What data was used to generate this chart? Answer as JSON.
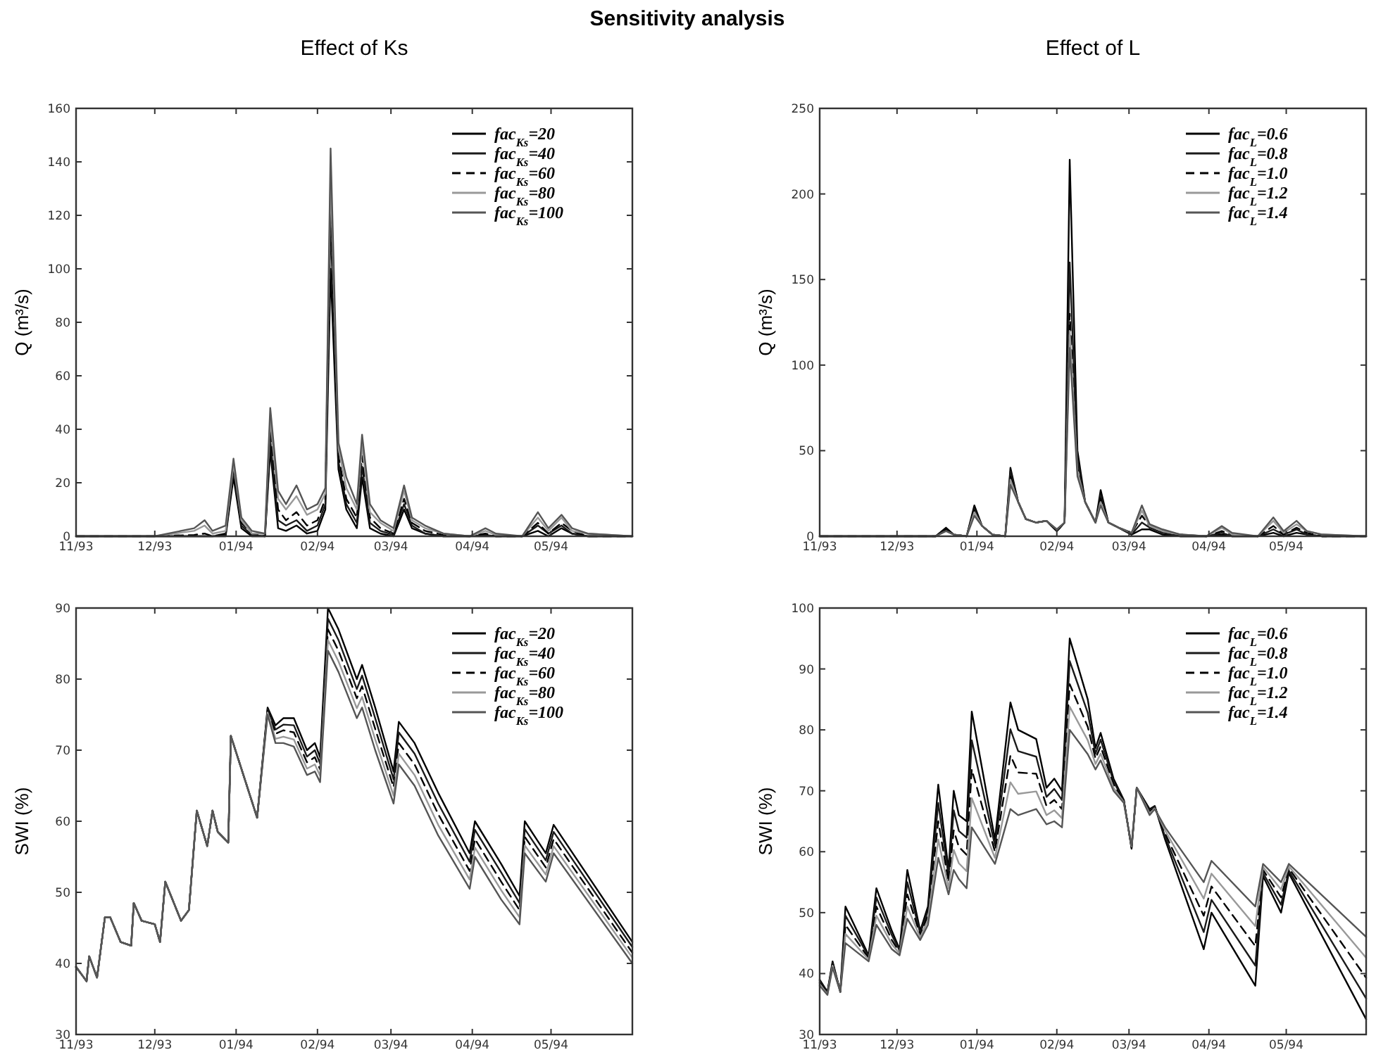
{
  "chart_data": [
    {
      "type": "line",
      "title": "Sensitivity analysis",
      "subtitle": "Effect of Ks",
      "ylabel": "Q (m³/s)",
      "legend": "top right",
      "x": [
        "1993-11-01",
        "1993-12-01",
        "1993-12-16",
        "1993-12-20",
        "1993-12-23",
        "1993-12-28",
        "1993-12-31",
        "1994-01-03",
        "1994-01-07",
        "1994-01-12",
        "1994-01-14",
        "1994-01-17",
        "1994-01-20",
        "1994-01-24",
        "1994-01-28",
        "1994-02-01",
        "1994-02-04",
        "1994-02-06",
        "1994-02-09",
        "1994-02-12",
        "1994-02-16",
        "1994-02-18",
        "1994-02-21",
        "1994-02-25",
        "1994-03-02",
        "1994-03-06",
        "1994-03-09",
        "1994-03-14",
        "1994-03-21",
        "1994-03-31",
        "1994-04-06",
        "1994-04-10",
        "1994-04-20",
        "1994-04-26",
        "1994-04-30",
        "1994-05-05",
        "1994-05-09",
        "1994-05-15",
        "1994-06-01"
      ],
      "xlim": [
        "1993-11-01",
        "1994-06-01"
      ],
      "xticks": [
        {
          "value": "1993-11-01",
          "label": "11/93"
        },
        {
          "value": "1993-12-01",
          "label": "12/93"
        },
        {
          "value": "1994-01-01",
          "label": "01/94"
        },
        {
          "value": "1994-02-01",
          "label": "02/94"
        },
        {
          "value": "1994-03-01",
          "label": "03/94"
        },
        {
          "value": "1994-04-01",
          "label": "04/94"
        },
        {
          "value": "1994-05-01",
          "label": "05/94"
        }
      ],
      "ylim": [
        0,
        160
      ],
      "yticks": [
        0,
        20,
        40,
        60,
        80,
        100,
        120,
        140,
        160
      ],
      "series": [
        {
          "name": "fac$_{Ks}$=20",
          "color": "#000000",
          "line_style": "solid",
          "values": [
            0,
            0,
            0,
            0,
            0,
            0,
            22,
            3,
            0,
            0,
            32,
            3,
            2,
            4,
            1,
            2,
            10,
            100,
            25,
            10,
            3,
            22,
            3,
            1,
            0,
            10,
            3,
            1,
            0,
            0,
            0,
            0,
            0,
            2,
            0,
            3,
            1,
            0,
            0
          ]
        },
        {
          "name": "fac$_{Ks}$=40",
          "color": "#1a1a1a",
          "line_style": "solid",
          "values": [
            0,
            0,
            0,
            0,
            0,
            0.5,
            24,
            4,
            0.5,
            0,
            36,
            6,
            4,
            6,
            2,
            4,
            12,
            118,
            28,
            12,
            5,
            26,
            5,
            2,
            0.5,
            12,
            4,
            1,
            0,
            0,
            0.5,
            0,
            0,
            4,
            1,
            4,
            1,
            0,
            0
          ]
        },
        {
          "name": "fac$_{Ks}$=60",
          "color": "#000000",
          "line_style": "dashed",
          "values": [
            0,
            0,
            0.5,
            1,
            0,
            1,
            25,
            5,
            1,
            0,
            40,
            10,
            6,
            9,
            4,
            6,
            14,
            125,
            30,
            14,
            7,
            30,
            7,
            3,
            1,
            14,
            5,
            2,
            0.5,
            0,
            1,
            0,
            0,
            5,
            1,
            5,
            2,
            0,
            0
          ]
        },
        {
          "name": "fac$_{Ks}$=80",
          "color": "#999999",
          "line_style": "solid",
          "values": [
            0,
            0,
            2,
            4,
            1,
            2,
            27,
            6,
            1,
            1,
            44,
            14,
            10,
            15,
            8,
            10,
            16,
            135,
            33,
            18,
            10,
            34,
            9,
            5,
            2,
            17,
            6,
            3,
            1,
            0,
            2,
            0.5,
            0,
            7,
            2,
            7,
            2,
            1,
            0
          ]
        },
        {
          "name": "fac$_{Ks}$=100",
          "color": "#555555",
          "line_style": "solid",
          "values": [
            0,
            0,
            3,
            6,
            2,
            4,
            29,
            7,
            2,
            1,
            48,
            17,
            12,
            19,
            10,
            12,
            18,
            145,
            35,
            22,
            12,
            38,
            12,
            6,
            3,
            19,
            7,
            4,
            1,
            0,
            3,
            1,
            0,
            9,
            3,
            8,
            3,
            1,
            0
          ]
        }
      ]
    },
    {
      "type": "line",
      "subtitle": "Effect of L",
      "ylabel": "Q (m³/s)",
      "legend": "top right",
      "x": [
        "1993-11-01",
        "1993-12-01",
        "1993-12-16",
        "1993-12-20",
        "1993-12-23",
        "1993-12-28",
        "1993-12-31",
        "1994-01-03",
        "1994-01-07",
        "1994-01-12",
        "1994-01-14",
        "1994-01-17",
        "1994-01-20",
        "1994-01-24",
        "1994-01-28",
        "1994-02-01",
        "1994-02-04",
        "1994-02-06",
        "1994-02-09",
        "1994-02-12",
        "1994-02-16",
        "1994-02-18",
        "1994-02-21",
        "1994-02-25",
        "1994-03-02",
        "1994-03-06",
        "1994-03-09",
        "1994-03-14",
        "1994-03-21",
        "1994-03-31",
        "1994-04-06",
        "1994-04-10",
        "1994-04-20",
        "1994-04-26",
        "1994-04-30",
        "1994-05-05",
        "1994-05-09",
        "1994-05-15",
        "1994-06-01"
      ],
      "xlim": [
        "1993-11-01",
        "1994-06-01"
      ],
      "xticks": [
        {
          "value": "1993-11-01",
          "label": "11/93"
        },
        {
          "value": "1993-12-01",
          "label": "12/93"
        },
        {
          "value": "1994-01-01",
          "label": "01/94"
        },
        {
          "value": "1994-02-01",
          "label": "02/94"
        },
        {
          "value": "1994-03-01",
          "label": "03/94"
        },
        {
          "value": "1994-04-01",
          "label": "04/94"
        },
        {
          "value": "1994-05-01",
          "label": "05/94"
        }
      ],
      "ylim": [
        0,
        250
      ],
      "yticks": [
        0,
        50,
        100,
        150,
        200,
        250
      ],
      "series": [
        {
          "name": "fac$_{L}$=0.6",
          "color": "#000000",
          "line_style": "solid",
          "values": [
            0,
            0,
            0,
            5,
            1,
            0,
            18,
            6,
            1,
            0,
            40,
            20,
            10,
            8,
            9,
            3,
            8,
            220,
            50,
            20,
            8,
            27,
            8,
            5,
            1,
            4,
            4,
            1,
            0,
            0,
            1,
            0,
            0,
            2,
            0,
            2,
            1,
            0,
            0
          ]
        },
        {
          "name": "fac$_{L}$=0.8",
          "color": "#1a1a1a",
          "line_style": "solid",
          "values": [
            0,
            0,
            0,
            4,
            1,
            0,
            16,
            6,
            1,
            0,
            38,
            20,
            10,
            8,
            9,
            3,
            8,
            160,
            45,
            20,
            8,
            24,
            8,
            5,
            1,
            8,
            5,
            2,
            0,
            0,
            2,
            0,
            0,
            4,
            1,
            4,
            1,
            0,
            0
          ]
        },
        {
          "name": "fac$_{L}$=1.0",
          "color": "#000000",
          "line_style": "dashed",
          "values": [
            0,
            0,
            0,
            4,
            1,
            0,
            15,
            6,
            1,
            0,
            35,
            20,
            10,
            8,
            9,
            3,
            8,
            130,
            40,
            20,
            8,
            22,
            8,
            5,
            2,
            12,
            6,
            3,
            1,
            0,
            3,
            1,
            0,
            6,
            1,
            5,
            2,
            0,
            0
          ]
        },
        {
          "name": "fac$_{L}$=1.2",
          "color": "#999999",
          "line_style": "solid",
          "values": [
            0,
            0,
            0,
            3,
            1,
            0,
            14,
            6,
            1,
            0,
            33,
            20,
            10,
            8,
            9,
            4,
            8,
            120,
            38,
            20,
            8,
            20,
            8,
            5,
            2,
            15,
            6,
            3,
            1,
            0,
            5,
            1,
            0,
            9,
            2,
            7,
            3,
            1,
            0
          ]
        },
        {
          "name": "fac$_{L}$=1.4",
          "color": "#555555",
          "line_style": "solid",
          "values": [
            0,
            0,
            0,
            3,
            1,
            0,
            12,
            6,
            1,
            0,
            30,
            20,
            10,
            8,
            9,
            4,
            8,
            110,
            35,
            20,
            8,
            18,
            8,
            5,
            2,
            18,
            7,
            4,
            1,
            0,
            6,
            2,
            0,
            11,
            3,
            9,
            3,
            1,
            0
          ]
        }
      ]
    },
    {
      "type": "line",
      "ylabel": "SWI (%)",
      "legend": "top right",
      "x": [
        "1993-11-01",
        "1993-11-05",
        "1993-11-06",
        "1993-11-09",
        "1993-11-12",
        "1993-11-14",
        "1993-11-18",
        "1993-11-22",
        "1993-11-23",
        "1993-11-26",
        "1993-12-01",
        "1993-12-03",
        "1993-12-05",
        "1993-12-11",
        "1993-12-14",
        "1993-12-17",
        "1993-12-21",
        "1993-12-23",
        "1993-12-25",
        "1993-12-29",
        "1993-12-30",
        "1994-01-09",
        "1994-01-13",
        "1994-01-16",
        "1994-01-19",
        "1994-01-23",
        "1994-01-28",
        "1994-01-31",
        "1994-02-02",
        "1994-02-05",
        "1994-02-09",
        "1994-02-16",
        "1994-02-18",
        "1994-02-23",
        "1994-03-02",
        "1994-03-04",
        "1994-03-10",
        "1994-03-19",
        "1994-03-31",
        "1994-04-02",
        "1994-04-12",
        "1994-04-19",
        "1994-04-21",
        "1994-04-29",
        "1994-05-02",
        "1994-06-01"
      ],
      "xlim": [
        "1993-11-01",
        "1994-06-01"
      ],
      "xticks": [
        {
          "value": "1993-11-01",
          "label": "11/93"
        },
        {
          "value": "1993-12-01",
          "label": "12/93"
        },
        {
          "value": "1994-01-01",
          "label": "01/94"
        },
        {
          "value": "1994-02-01",
          "label": "02/94"
        },
        {
          "value": "1994-03-01",
          "label": "03/94"
        },
        {
          "value": "1994-04-01",
          "label": "04/94"
        },
        {
          "value": "1994-05-01",
          "label": "05/94"
        }
      ],
      "ylim": [
        30,
        90
      ],
      "yticks": [
        30,
        40,
        50,
        60,
        70,
        80,
        90
      ],
      "series": [
        {
          "name": "fac$_{Ks}$=20",
          "color": "#000000",
          "line_style": "solid",
          "values": [
            39.5,
            37.5,
            41,
            38,
            46.5,
            46.5,
            43,
            42.5,
            48.5,
            46,
            45.5,
            43,
            51.5,
            46,
            47.5,
            61.5,
            56.5,
            61.5,
            58.5,
            57,
            72,
            60.5,
            76,
            73.5,
            74.5,
            74.5,
            70,
            71,
            69,
            90,
            87,
            80,
            82,
            76,
            67,
            74,
            71,
            64,
            55.5,
            60,
            54,
            49.5,
            60,
            55.5,
            59.5,
            43
          ]
        },
        {
          "name": "fac$_{Ks}$=40",
          "color": "#1a1a1a",
          "line_style": "solid",
          "values": [
            39.5,
            37.5,
            41,
            38,
            46.5,
            46.5,
            43,
            42.5,
            48.5,
            46,
            45.5,
            43,
            51.5,
            46,
            47.5,
            61.5,
            56.5,
            61.5,
            58.5,
            57,
            72,
            60.5,
            75.8,
            72.9,
            73.6,
            73.5,
            69.1,
            70,
            68.1,
            88.5,
            85.5,
            78.6,
            80.5,
            74.5,
            65.9,
            72.5,
            69.5,
            62.5,
            54.3,
            58.8,
            52.8,
            48.5,
            58.9,
            54.5,
            58.5,
            42.3
          ]
        },
        {
          "name": "fac$_{Ks}$=60",
          "color": "#000000",
          "line_style": "dashed",
          "values": [
            39.5,
            37.5,
            41,
            38,
            46.5,
            46.5,
            43,
            42.5,
            48.5,
            46,
            45.5,
            43,
            51.5,
            46,
            47.5,
            61.5,
            56.5,
            61.5,
            58.5,
            57,
            72,
            60.5,
            75.5,
            72.3,
            72.8,
            72.5,
            68.3,
            69,
            67.3,
            87,
            84,
            77.3,
            79,
            73,
            64.8,
            71,
            68,
            61,
            53,
            57.5,
            51.5,
            47.5,
            57.8,
            53.5,
            57.5,
            41.5
          ]
        },
        {
          "name": "fac$_{Ks}$=80",
          "color": "#999999",
          "line_style": "solid",
          "values": [
            39.5,
            37.5,
            41,
            38,
            46.5,
            46.5,
            43,
            42.5,
            48.5,
            46,
            45.5,
            43,
            51.5,
            46,
            47.5,
            61.5,
            56.5,
            61.5,
            58.5,
            57,
            72,
            60.5,
            75.3,
            71.6,
            71.9,
            71.5,
            67.4,
            68,
            66.4,
            85.5,
            82.5,
            75.9,
            77.5,
            71.5,
            63.6,
            69.5,
            66.5,
            59.5,
            51.8,
            56.3,
            50.3,
            46.5,
            56.6,
            52.5,
            56.5,
            40.8
          ]
        },
        {
          "name": "fac$_{Ks}$=100",
          "color": "#555555",
          "line_style": "solid",
          "values": [
            39.5,
            37.5,
            41,
            38,
            46.5,
            46.5,
            43,
            42.5,
            48.5,
            46,
            45.5,
            43,
            51.5,
            46,
            47.5,
            61.5,
            56.5,
            61.5,
            58.5,
            57,
            72,
            60.5,
            75,
            71,
            71,
            70.5,
            66.5,
            67,
            65.5,
            84,
            81,
            74.5,
            76,
            70,
            62.5,
            68,
            65,
            58,
            50.5,
            55,
            49,
            45.5,
            55.5,
            51.5,
            55.5,
            40
          ]
        }
      ]
    },
    {
      "type": "line",
      "ylabel": "SWI (%)",
      "legend": "top right",
      "x": [
        "1993-11-01",
        "1993-11-04",
        "1993-11-06",
        "1993-11-09",
        "1993-11-11",
        "1993-11-20",
        "1993-11-23",
        "1993-11-29",
        "1993-12-02",
        "1993-12-05",
        "1993-12-10",
        "1993-12-13",
        "1993-12-17",
        "1993-12-21",
        "1993-12-23",
        "1993-12-25",
        "1993-12-28",
        "1993-12-30",
        "1994-01-08",
        "1994-01-14",
        "1994-01-17",
        "1994-01-24",
        "1994-01-28",
        "1994-01-31",
        "1994-02-03",
        "1994-02-06",
        "1994-02-13",
        "1994-02-16",
        "1994-02-18",
        "1994-02-23",
        "1994-02-27",
        "1994-03-02",
        "1994-03-04",
        "1994-03-09",
        "1994-03-11",
        "1994-03-15",
        "1994-03-30",
        "1994-04-02",
        "1994-04-19",
        "1994-04-22",
        "1994-04-29",
        "1994-05-02",
        "1994-06-01"
      ],
      "xlim": [
        "1993-11-01",
        "1994-06-01"
      ],
      "xticks": [
        {
          "value": "1993-11-01",
          "label": "11/93"
        },
        {
          "value": "1993-12-01",
          "label": "12/93"
        },
        {
          "value": "1994-01-01",
          "label": "01/94"
        },
        {
          "value": "1994-02-01",
          "label": "02/94"
        },
        {
          "value": "1994-03-01",
          "label": "03/94"
        },
        {
          "value": "1994-04-01",
          "label": "04/94"
        },
        {
          "value": "1994-05-01",
          "label": "05/94"
        }
      ],
      "ylim": [
        30,
        100
      ],
      "yticks": [
        30,
        40,
        50,
        60,
        70,
        80,
        90,
        100
      ],
      "series": [
        {
          "name": "fac$_{L}$=0.6",
          "color": "#000000",
          "line_style": "solid",
          "values": [
            39,
            37,
            42,
            37,
            51,
            43,
            54,
            47,
            44,
            57,
            47,
            51,
            71,
            57,
            70,
            66,
            65,
            83,
            62,
            84.5,
            80,
            78.5,
            70.5,
            72,
            70,
            95,
            85,
            77,
            79.5,
            72,
            68.5,
            60.5,
            70.5,
            67,
            67.5,
            62,
            44,
            50,
            38,
            56,
            50,
            56.5,
            32.5
          ]
        },
        {
          "name": "fac$_{L}$=0.8",
          "color": "#1a1a1a",
          "line_style": "solid",
          "values": [
            38.8,
            36.9,
            41.8,
            37,
            49.5,
            42.8,
            52.5,
            46.3,
            43.8,
            55,
            46.6,
            50.3,
            68,
            56,
            66.8,
            63.4,
            62.3,
            78.3,
            61,
            80.1,
            76.5,
            75.6,
            69,
            70.3,
            68.5,
            91.3,
            82.8,
            76.1,
            78.4,
            71.5,
            68.4,
            60.6,
            70.5,
            66.8,
            67.4,
            62.5,
            46.8,
            52.1,
            41.3,
            56.5,
            51.3,
            56.9,
            35.9
          ]
        },
        {
          "name": "fac$_{L}$=1.0",
          "color": "#000000",
          "line_style": "dashed",
          "values": [
            38.5,
            36.8,
            41.5,
            37,
            48,
            42.5,
            51,
            45.5,
            43.5,
            53,
            46.3,
            49.5,
            65,
            55,
            63.5,
            60.8,
            59.5,
            73.5,
            60,
            75.8,
            73,
            72.8,
            67.5,
            68.5,
            67,
            87.5,
            80.5,
            75.3,
            77.3,
            71,
            68.3,
            60.8,
            70.5,
            66.5,
            67.3,
            63,
            49.5,
            54.3,
            44.5,
            57,
            52.5,
            57.3,
            39.3
          ]
        },
        {
          "name": "fac$_{L}$=1.2",
          "color": "#999999",
          "line_style": "solid",
          "values": [
            38.3,
            36.6,
            41.3,
            37,
            46.5,
            42.3,
            49.5,
            44.8,
            43.3,
            51,
            45.9,
            48.8,
            62,
            54,
            60.3,
            58.1,
            56.8,
            68.8,
            59,
            71.4,
            69.5,
            69.9,
            66,
            66.8,
            65.5,
            83.8,
            78.3,
            74.4,
            76.1,
            70.5,
            68.1,
            60.9,
            70.5,
            66.3,
            67.1,
            63.5,
            52.3,
            56.4,
            47.8,
            57.5,
            53.8,
            57.6,
            42.6
          ]
        },
        {
          "name": "fac$_{L}$=1.4",
          "color": "#555555",
          "line_style": "solid",
          "values": [
            38,
            36.5,
            41,
            37,
            45,
            42,
            48,
            44,
            43,
            49,
            45.5,
            48,
            59,
            53,
            57,
            55.5,
            54,
            64,
            58,
            67,
            66,
            67,
            64.5,
            65,
            64,
            80,
            76,
            73.5,
            75,
            70,
            68,
            61,
            70.5,
            66,
            67,
            64,
            55,
            58.5,
            51,
            58,
            55,
            58,
            46
          ]
        }
      ]
    }
  ]
}
